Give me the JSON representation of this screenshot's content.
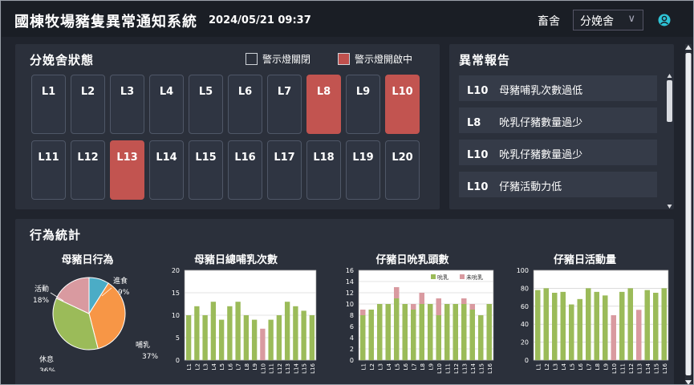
{
  "header": {
    "title": "國棟牧場豬隻異常通知系統",
    "datetime": "2024/05/21 09:37",
    "barn_label": "畜舍",
    "barn_selected": "分娩舍"
  },
  "status_panel": {
    "title": "分娩舍狀態",
    "legend_off": "警示燈關閉",
    "legend_on": "警示燈開啟中",
    "pens": [
      {
        "label": "L1",
        "alarm": false
      },
      {
        "label": "L2",
        "alarm": false
      },
      {
        "label": "L3",
        "alarm": false
      },
      {
        "label": "L4",
        "alarm": false
      },
      {
        "label": "L5",
        "alarm": false
      },
      {
        "label": "L6",
        "alarm": false
      },
      {
        "label": "L7",
        "alarm": false
      },
      {
        "label": "L8",
        "alarm": true
      },
      {
        "label": "L9",
        "alarm": false
      },
      {
        "label": "L10",
        "alarm": true
      },
      {
        "label": "L11",
        "alarm": false
      },
      {
        "label": "L12",
        "alarm": false
      },
      {
        "label": "L13",
        "alarm": true
      },
      {
        "label": "L14",
        "alarm": false
      },
      {
        "label": "L15",
        "alarm": false
      },
      {
        "label": "L16",
        "alarm": false
      },
      {
        "label": "L17",
        "alarm": false
      },
      {
        "label": "L18",
        "alarm": false
      },
      {
        "label": "L19",
        "alarm": false
      },
      {
        "label": "L20",
        "alarm": false
      }
    ]
  },
  "report_panel": {
    "title": "異常報告",
    "items": [
      {
        "pen": "L10",
        "text": "母豬哺乳次數過低"
      },
      {
        "pen": "L8",
        "text": "吮乳仔豬數量過少"
      },
      {
        "pen": "L10",
        "text": "吮乳仔豬數量過少"
      },
      {
        "pen": "L10",
        "text": "仔豬活動力低"
      }
    ]
  },
  "stats_panel": {
    "title": "行為統計"
  },
  "colors": {
    "alarm": "#c25450",
    "green": "#9bbb59",
    "pink": "#d99aa0",
    "orange": "#f79646",
    "cyan": "#4bacc6",
    "accent": "#2ec4d6"
  },
  "chart_data": [
    {
      "type": "pie",
      "title": "母豬日行為",
      "slices": [
        {
          "label": "進食",
          "value": 9,
          "pct": "9%",
          "color": "#4bacc6"
        },
        {
          "label": "哺乳",
          "value": 37,
          "pct": "37%",
          "color": "#f79646"
        },
        {
          "label": "休息",
          "value": 36,
          "pct": "36%",
          "color": "#9bbb59"
        },
        {
          "label": "活動",
          "value": 18,
          "pct": "18%",
          "color": "#d99aa0"
        }
      ]
    },
    {
      "type": "bar",
      "title": "母豬日總哺乳次數",
      "categories": [
        "L1",
        "L2",
        "L3",
        "L4",
        "L5",
        "L6",
        "L7",
        "L8",
        "L9",
        "L10",
        "L11",
        "L12",
        "L13",
        "L14",
        "L15",
        "L16"
      ],
      "values": [
        10,
        12,
        10,
        13,
        9,
        12,
        13,
        10,
        9,
        7,
        9,
        10,
        13,
        12,
        11,
        10
      ],
      "highlight": [
        9
      ],
      "ylim": [
        0,
        20
      ],
      "yticks": [
        0,
        5,
        10,
        15,
        20
      ]
    },
    {
      "type": "bar",
      "title": "仔豬日吮乳頭數",
      "categories": [
        "L1",
        "L2",
        "L3",
        "L4",
        "L5",
        "L6",
        "L7",
        "L8",
        "L9",
        "L10",
        "L11",
        "L12",
        "L13",
        "L14",
        "L15",
        "L16"
      ],
      "series": [
        {
          "name": "吮乳",
          "values": [
            8,
            9,
            10,
            10,
            11,
            10,
            9,
            10,
            10,
            8,
            10,
            10,
            10,
            9,
            8,
            10
          ],
          "color": "#9bbb59"
        },
        {
          "name": "未吮乳",
          "values": [
            1,
            0,
            0,
            0,
            2,
            0,
            1,
            2,
            0,
            3,
            0,
            0,
            1,
            1,
            0,
            0
          ],
          "color": "#d99aa0"
        }
      ],
      "ylim": [
        0,
        16
      ],
      "yticks": [
        0,
        2,
        4,
        6,
        8,
        10,
        12,
        14,
        16
      ]
    },
    {
      "type": "bar",
      "title": "仔豬日活動量",
      "categories": [
        "L1",
        "L2",
        "L3",
        "L4",
        "L5",
        "L6",
        "L7",
        "L8",
        "L9",
        "L10",
        "L11",
        "L12",
        "L13",
        "L14",
        "L15",
        "L16"
      ],
      "values": [
        78,
        80,
        75,
        76,
        62,
        68,
        80,
        76,
        72,
        50,
        76,
        80,
        56,
        78,
        75,
        80
      ],
      "highlight": [
        9,
        12
      ],
      "ylim": [
        0,
        100
      ],
      "yticks": [
        0,
        20,
        40,
        60,
        80,
        100
      ]
    }
  ]
}
